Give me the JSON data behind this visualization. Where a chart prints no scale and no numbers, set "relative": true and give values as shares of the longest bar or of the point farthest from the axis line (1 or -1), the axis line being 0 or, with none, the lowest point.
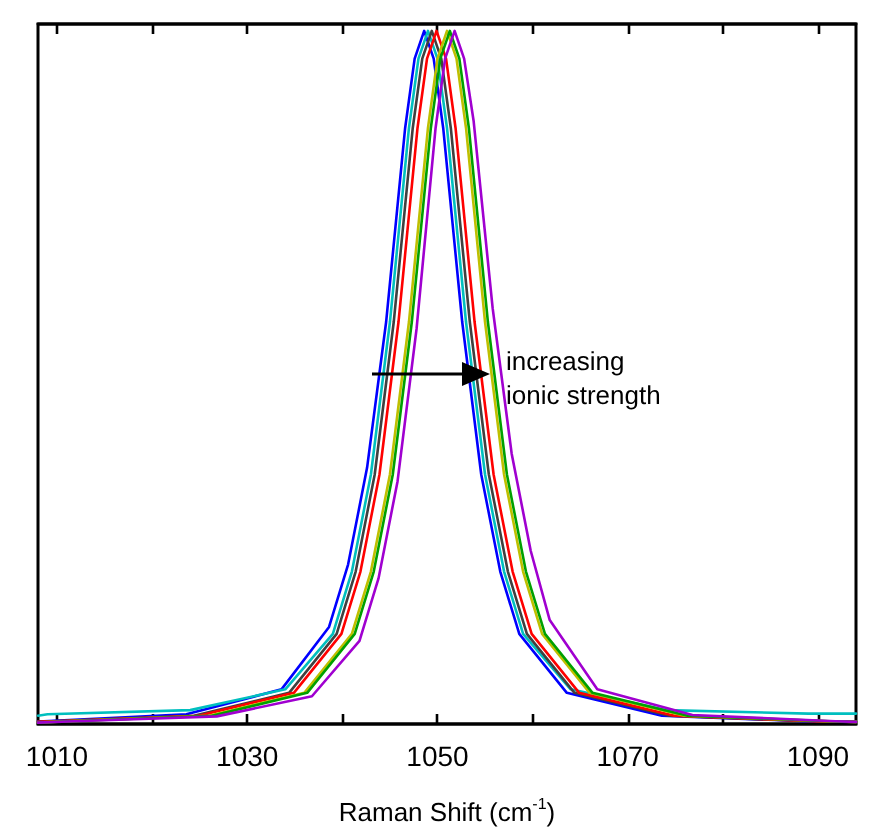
{
  "chart_data": {
    "type": "line",
    "relative": true,
    "xlabel": "Raman Shift (cm$^{-1}$)",
    "xlim": [
      1008,
      1094
    ],
    "xticks": [
      1010,
      {
        "value": 1020,
        "label": null
      },
      1030,
      {
        "value": 1040,
        "label": null
      },
      1050,
      {
        "value": 1060,
        "label": null
      },
      1070,
      {
        "value": 1080,
        "label": null
      },
      1090
    ],
    "marker": "none",
    "line_style": "solid",
    "annotations": [
      "increasing ionic strength"
    ],
    "series": [
      {
        "color": "#0000ff",
        "x": [
          1008,
          1008.6,
          1023.6,
          1033.6,
          1038.6,
          1040.6,
          1042.6,
          1044.6,
          1046.6,
          1047.6,
          1048.6,
          1049.6,
          1050.6,
          1052.6,
          1054.6,
          1056.6,
          1058.6,
          1063.6,
          1073.6,
          1088.6,
          1094
        ],
        "values": [
          0.004,
          0.004,
          0.014,
          0.05,
          0.14,
          0.23,
          0.37,
          0.58,
          0.86,
          0.96,
          1,
          0.96,
          0.86,
          0.58,
          0.36,
          0.22,
          0.13,
          0.045,
          0.012,
          0.004,
          0.003
        ]
      },
      {
        "color": "#00bfbf",
        "x": [
          1008,
          1009,
          1024,
          1034,
          1039,
          1041,
          1043,
          1045,
          1047,
          1048,
          1049,
          1050,
          1051,
          1053,
          1055,
          1057,
          1059,
          1064,
          1074,
          1089,
          1094
        ],
        "values": [
          0.012,
          0.014,
          0.02,
          0.05,
          0.13,
          0.22,
          0.36,
          0.58,
          0.86,
          0.96,
          1,
          0.96,
          0.86,
          0.58,
          0.36,
          0.22,
          0.13,
          0.05,
          0.02,
          0.015,
          0.015
        ]
      },
      {
        "color": "#404040",
        "x": [
          1008,
          1009.4,
          1024.4,
          1034.4,
          1039.4,
          1041.4,
          1043.4,
          1045.4,
          1047.4,
          1048.4,
          1049.4,
          1050.4,
          1051.4,
          1053.4,
          1055.4,
          1057.4,
          1059.4,
          1064.4,
          1074.4,
          1089.4,
          1094
        ],
        "values": [
          0.003,
          0.004,
          0.012,
          0.045,
          0.13,
          0.22,
          0.36,
          0.58,
          0.86,
          0.96,
          1,
          0.96,
          0.86,
          0.58,
          0.36,
          0.22,
          0.13,
          0.045,
          0.012,
          0.004,
          0.003
        ]
      },
      {
        "color": "#ff0000",
        "x": [
          1008,
          1009.9,
          1024.9,
          1034.9,
          1039.9,
          1041.9,
          1043.9,
          1045.9,
          1047.9,
          1048.9,
          1049.9,
          1050.9,
          1051.9,
          1053.9,
          1055.9,
          1057.9,
          1059.9,
          1064.9,
          1074.9,
          1089.9,
          1094
        ],
        "values": [
          0.003,
          0.004,
          0.012,
          0.045,
          0.13,
          0.22,
          0.36,
          0.58,
          0.86,
          0.96,
          1,
          0.96,
          0.86,
          0.58,
          0.36,
          0.22,
          0.13,
          0.045,
          0.012,
          0.004,
          0.003
        ]
      },
      {
        "color": "#bfbf00",
        "x": [
          1008,
          1011,
          1026,
          1036,
          1041,
          1043,
          1045,
          1047,
          1049,
          1050,
          1051,
          1052,
          1053,
          1055,
          1057,
          1059,
          1061,
          1066,
          1076,
          1091,
          1094
        ],
        "values": [
          0.002,
          0.004,
          0.012,
          0.045,
          0.13,
          0.22,
          0.36,
          0.58,
          0.86,
          0.96,
          1,
          0.96,
          0.86,
          0.58,
          0.36,
          0.22,
          0.13,
          0.045,
          0.012,
          0.004,
          0.003
        ]
      },
      {
        "color": "#00a000",
        "x": [
          1008,
          1011.3,
          1026.3,
          1036.3,
          1041.3,
          1043.3,
          1045.3,
          1047.3,
          1049.3,
          1050.3,
          1051.3,
          1052.3,
          1053.3,
          1055.3,
          1057.3,
          1059.3,
          1061.3,
          1066.3,
          1076.3,
          1091.3,
          1094
        ],
        "values": [
          0.002,
          0.004,
          0.012,
          0.045,
          0.13,
          0.22,
          0.36,
          0.58,
          0.86,
          0.96,
          1,
          0.96,
          0.86,
          0.58,
          0.36,
          0.22,
          0.13,
          0.045,
          0.012,
          0.004,
          0.003
        ]
      },
      {
        "color": "#a000d0",
        "x": [
          1008,
          1011.8,
          1026.8,
          1036.8,
          1041.8,
          1043.8,
          1045.8,
          1047.8,
          1049.8,
          1050.8,
          1051.8,
          1052.8,
          1053.8,
          1055.8,
          1057.8,
          1059.8,
          1061.8,
          1066.8,
          1076.8,
          1091.8,
          1094
        ],
        "values": [
          0.002,
          0.004,
          0.011,
          0.04,
          0.12,
          0.21,
          0.35,
          0.57,
          0.86,
          0.96,
          1,
          0.96,
          0.87,
          0.6,
          0.39,
          0.25,
          0.15,
          0.05,
          0.013,
          0.004,
          0.003
        ]
      }
    ]
  }
}
